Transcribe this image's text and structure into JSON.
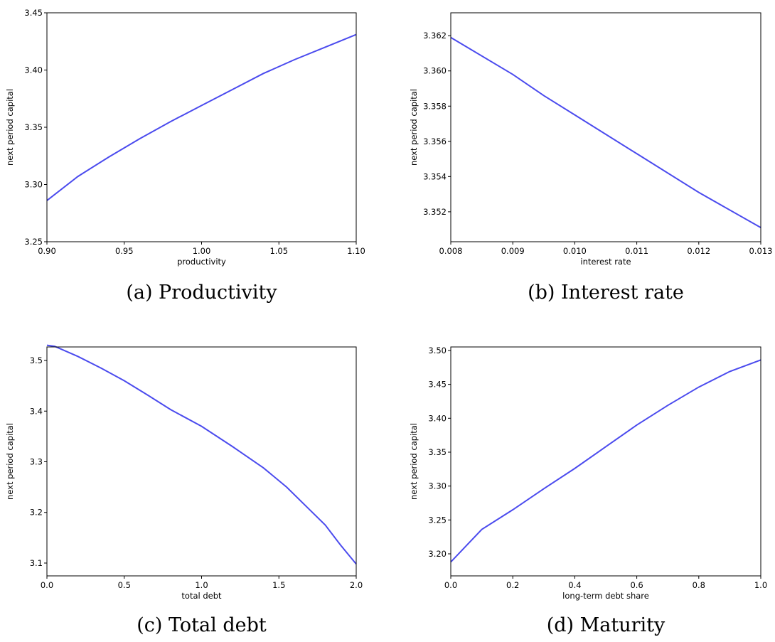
{
  "chart_data": [
    {
      "type": "line",
      "caption": "(a) Productivity",
      "xlabel": "productivity",
      "ylabel": "next period capital",
      "x": [
        0.9,
        0.92,
        0.94,
        0.96,
        0.98,
        1.0,
        1.02,
        1.04,
        1.06,
        1.08,
        1.1
      ],
      "series": [
        {
          "color": "#4b4bee",
          "values": [
            3.286,
            3.307,
            3.324,
            3.34,
            3.355,
            3.369,
            3.383,
            3.397,
            3.409,
            3.42,
            3.431
          ]
        }
      ],
      "xlim": [
        0.9,
        1.1
      ],
      "ylim": [
        3.25,
        3.45
      ],
      "xticks": [
        {
          "value": 0.9,
          "label": "0.90"
        },
        0.95,
        {
          "value": 1.0,
          "label": "1.00"
        },
        1.05,
        {
          "value": 1.1,
          "label": "1.10"
        }
      ],
      "yticks": [
        3.25,
        {
          "value": 3.3,
          "label": "3.30"
        },
        3.35,
        {
          "value": 3.4,
          "label": "3.40"
        },
        3.45
      ]
    },
    {
      "type": "line",
      "caption": "(b) Interest rate",
      "xlabel": "interest rate",
      "ylabel": "next period capital",
      "x": [
        0.008,
        0.009,
        0.0095,
        0.01,
        0.011,
        0.012,
        0.013
      ],
      "series": [
        {
          "color": "#4b4bee",
          "values": [
            3.3619,
            3.3598,
            3.3586,
            3.3575,
            3.3553,
            3.3531,
            3.3511
          ]
        }
      ],
      "xlim": [
        0.008,
        0.013
      ],
      "ylim": [
        3.3503,
        3.3633
      ],
      "xticks": [
        0.008,
        0.009,
        {
          "value": 0.01,
          "label": "0.010"
        },
        0.011,
        0.012,
        0.013
      ],
      "yticks": [
        3.352,
        3.354,
        3.356,
        3.358,
        {
          "value": 3.36,
          "label": "3.360"
        },
        3.362
      ]
    },
    {
      "type": "line",
      "caption": "(c) Total debt",
      "xlabel": "total debt",
      "ylabel": "next period capital",
      "x": [
        0,
        0.05,
        0.2,
        0.35,
        0.5,
        0.65,
        0.8,
        1.0,
        1.2,
        1.4,
        1.55,
        1.7,
        1.8,
        1.9,
        2.0
      ],
      "series": [
        {
          "color": "#4b4bee",
          "values": [
            3.53,
            3.528,
            3.508,
            3.485,
            3.46,
            3.432,
            3.403,
            3.37,
            3.33,
            3.288,
            3.25,
            3.205,
            3.175,
            3.135,
            3.098
          ]
        }
      ],
      "xlim": [
        0,
        2
      ],
      "ylim": [
        3.0747,
        3.5267
      ],
      "xticks": [
        {
          "value": 0,
          "label": "0.0"
        },
        0.5,
        {
          "value": 1,
          "label": "1.0"
        },
        1.5,
        {
          "value": 2,
          "label": "2.0"
        }
      ],
      "yticks": [
        3.1,
        3.2,
        3.3,
        3.4,
        3.5
      ]
    },
    {
      "type": "line",
      "caption": "(d) Maturity",
      "xlabel": "long-term debt share",
      "ylabel": "next period capital",
      "x": [
        0,
        0.1,
        0.2,
        0.3,
        0.4,
        0.5,
        0.6,
        0.7,
        0.8,
        0.9,
        1.0
      ],
      "series": [
        {
          "color": "#4b4bee",
          "values": [
            3.188,
            3.236,
            3.265,
            3.296,
            3.326,
            3.358,
            3.39,
            3.419,
            3.446,
            3.469,
            3.486
          ]
        }
      ],
      "xlim": [
        0,
        1
      ],
      "ylim": [
        3.1675,
        3.5052
      ],
      "xticks": [
        {
          "value": 0,
          "label": "0.0"
        },
        0.2,
        0.4,
        0.6,
        0.8,
        {
          "value": 1,
          "label": "1.0"
        }
      ],
      "yticks": [
        {
          "value": 3.2,
          "label": "3.20"
        },
        3.25,
        {
          "value": 3.3,
          "label": "3.30"
        },
        3.35,
        {
          "value": 3.4,
          "label": "3.40"
        },
        3.45,
        {
          "value": 3.5,
          "label": "3.50"
        }
      ]
    }
  ]
}
